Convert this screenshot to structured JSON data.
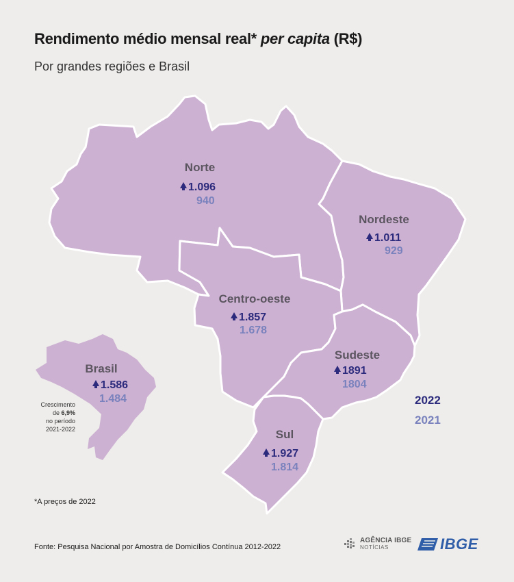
{
  "header": {
    "title_prefix": "Rendimento médio mensal real* ",
    "title_italic": "per capita",
    "title_suffix": " (R$)",
    "subtitle": "Por grandes regiões e Brasil"
  },
  "regions": [
    {
      "name": "Norte",
      "value_2022": "1.096",
      "value_2021": "940"
    },
    {
      "name": "Nordeste",
      "value_2022": "1.011",
      "value_2021": "929"
    },
    {
      "name": "Centro-oeste",
      "value_2022": "1.857",
      "value_2021": "1.678"
    },
    {
      "name": "Sudeste",
      "value_2022": "1891",
      "value_2021": "1804"
    },
    {
      "name": "Sul",
      "value_2022": "1.927",
      "value_2021": "1.814"
    }
  ],
  "brasil": {
    "name": "Brasil",
    "value_2022": "1.586",
    "value_2021": "1.484",
    "growth_line1": "Crescimento",
    "growth_prefix": "de ",
    "growth_pct": "6,9%",
    "growth_line3": "no período",
    "growth_line4": "2021-2022"
  },
  "legend": {
    "year_2022": "2022",
    "year_2021": "2021"
  },
  "colors": {
    "region_fill": "#cdb1d2",
    "value_2022": "#2b2a7c",
    "value_2021": "#7a82bd",
    "border": "#ffffff"
  },
  "footnote": "*A preços de 2022",
  "source": "Fonte: Pesquisa Nacional por Amostra de Domicílios Contínua 2012-2022",
  "logos": {
    "agency_top": "AGÊNCIA IBGE",
    "agency_bottom": "NOTÍCIAS",
    "agency_icon": "agencia-ibge-icon",
    "ibge_text": "IBGE",
    "ibge_icon": "ibge-flag-icon"
  }
}
